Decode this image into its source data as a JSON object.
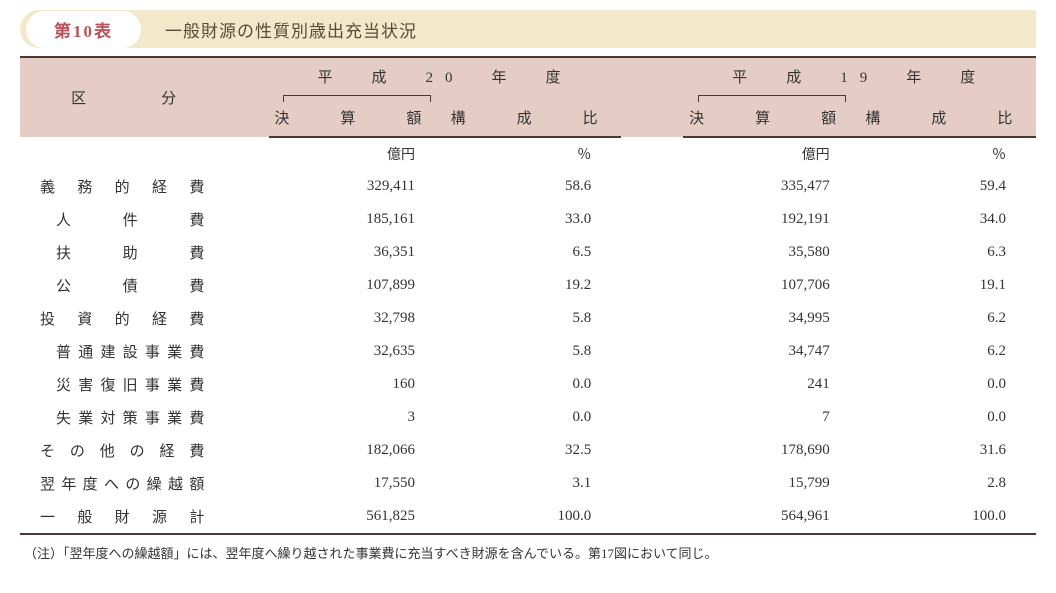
{
  "title": {
    "badge": "第10表",
    "text": "一般財源の性質別歳出充当状況"
  },
  "header": {
    "category_label": "区　　　　　分",
    "year1": "平　成　20　年　度",
    "year2": "平　成　19　年　度",
    "amount_label": "決　算　額",
    "ratio_label": "構　成　比"
  },
  "units": {
    "amount": "億円",
    "ratio": "％"
  },
  "rows": [
    {
      "label": "義務的経費",
      "indent": 0,
      "y1_amount": "329,411",
      "y1_ratio": "58.6",
      "y2_amount": "335,477",
      "y2_ratio": "59.4"
    },
    {
      "label": "人件費",
      "indent": 1,
      "y1_amount": "185,161",
      "y1_ratio": "33.0",
      "y2_amount": "192,191",
      "y2_ratio": "34.0"
    },
    {
      "label": "扶助費",
      "indent": 1,
      "y1_amount": "36,351",
      "y1_ratio": "6.5",
      "y2_amount": "35,580",
      "y2_ratio": "6.3"
    },
    {
      "label": "公債費",
      "indent": 1,
      "y1_amount": "107,899",
      "y1_ratio": "19.2",
      "y2_amount": "107,706",
      "y2_ratio": "19.1"
    },
    {
      "label": "投資的経費",
      "indent": 0,
      "y1_amount": "32,798",
      "y1_ratio": "5.8",
      "y2_amount": "34,995",
      "y2_ratio": "6.2"
    },
    {
      "label": "普通建設事業費",
      "indent": 2,
      "y1_amount": "32,635",
      "y1_ratio": "5.8",
      "y2_amount": "34,747",
      "y2_ratio": "6.2"
    },
    {
      "label": "災害復旧事業費",
      "indent": 2,
      "y1_amount": "160",
      "y1_ratio": "0.0",
      "y2_amount": "241",
      "y2_ratio": "0.0"
    },
    {
      "label": "失業対策事業費",
      "indent": 2,
      "y1_amount": "3",
      "y1_ratio": "0.0",
      "y2_amount": "7",
      "y2_ratio": "0.0"
    },
    {
      "label": "その他の経費",
      "indent": 0,
      "y1_amount": "182,066",
      "y1_ratio": "32.5",
      "y2_amount": "178,690",
      "y2_ratio": "31.6"
    },
    {
      "label": "翌年度への繰越額",
      "indent": 0,
      "y1_amount": "17,550",
      "y1_ratio": "3.1",
      "y2_amount": "15,799",
      "y2_ratio": "2.8"
    },
    {
      "label": "一般財源計",
      "indent": 0,
      "y1_amount": "561,825",
      "y1_ratio": "100.0",
      "y2_amount": "564,961",
      "y2_ratio": "100.0"
    }
  ],
  "footnote": "（注）「翌年度への繰越額」には、翌年度へ繰り越された事業費に充当すべき財源を含んでいる。第17図において同じ。",
  "colors": {
    "title_bar_bg": "#f4e8cb",
    "badge_text": "#b8525a",
    "header_bg": "#e5cdc5",
    "border": "#4a3a2a"
  }
}
